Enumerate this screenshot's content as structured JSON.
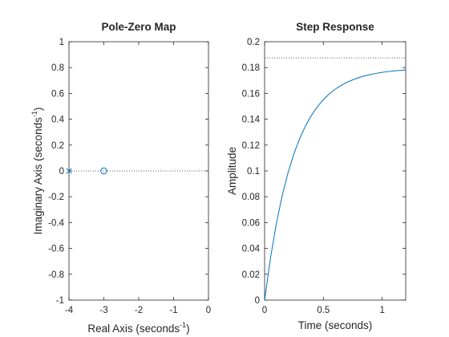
{
  "chart_data": [
    {
      "type": "scatter",
      "title": "Pole-Zero Map",
      "xlabel": {
        "text": "Real Axis (seconds",
        "sup": "-1",
        "close": ")"
      },
      "ylabel": {
        "text": "Imaginary Axis (seconds",
        "sup": "-1",
        "close": ")"
      },
      "xlim": [
        -4,
        0
      ],
      "ylim": [
        -1,
        1
      ],
      "xticks": [
        "-4",
        "-3",
        "-2",
        "-1",
        "0"
      ],
      "yticks": [
        "-1",
        "-0.8",
        "-0.6",
        "-0.4",
        "-0.2",
        "0",
        "0.2",
        "0.4",
        "0.6",
        "0.8",
        "1"
      ],
      "poles": [
        {
          "x": -4,
          "y": 0
        }
      ],
      "zeros": [
        {
          "x": -3,
          "y": 0
        }
      ],
      "reference_line": {
        "y": 0,
        "style": "dotted"
      },
      "color": "#0072bd"
    },
    {
      "type": "line",
      "title": "Step Response",
      "xlabel": "Time (seconds)",
      "ylabel": "Amplitude",
      "xlim": [
        0,
        1.2
      ],
      "ylim": [
        0,
        0.2
      ],
      "xticks": [
        "0",
        "0.5",
        "1"
      ],
      "yticks": [
        "0",
        "0.02",
        "0.04",
        "0.06",
        "0.08",
        "0.1",
        "0.12",
        "0.14",
        "0.16",
        "0.18",
        "0.2"
      ],
      "series": [
        {
          "x": [
            0,
            0.05,
            0.1,
            0.15,
            0.2,
            0.25,
            0.3,
            0.35,
            0.4,
            0.45,
            0.5,
            0.55,
            0.6,
            0.65,
            0.7,
            0.75,
            0.8,
            0.85,
            0.9,
            0.95,
            1.0,
            1.05,
            1.1,
            1.15,
            1.2
          ],
          "values": [
            0,
            0.0325,
            0.0592,
            0.081,
            0.0988,
            0.1134,
            0.1254,
            0.1352,
            0.1432,
            0.1498,
            0.1552,
            0.1596,
            0.1632,
            0.1661,
            0.1686,
            0.1705,
            0.1722,
            0.1735,
            0.1746,
            0.1755,
            0.1763,
            0.1769,
            0.1774,
            0.1778,
            0.1781
          ]
        }
      ],
      "steady_state": 0.1875,
      "color": "#0072bd"
    }
  ]
}
